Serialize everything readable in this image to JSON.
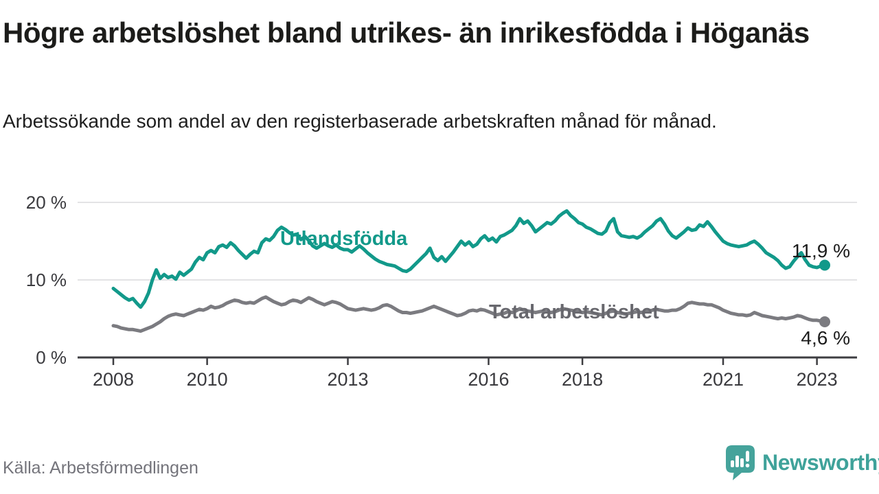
{
  "header": {
    "title": "Högre arbetslöshet bland utrikes- än inrikesfödda i Höganäs",
    "subtitle": "Arbetssökande som andel av den registerbaserade arbetskraften månad för månad."
  },
  "chart_data": {
    "type": "line",
    "title": "Högre arbetslöshet bland utrikes- än inrikesfödda i Höganäs",
    "xlabel": "",
    "ylabel": "Arbetssökande som andel av den registerbaserade arbetskraften, månadsvis",
    "x_start": "2008-01",
    "x_interval": "monthly",
    "x_end": "2023-03",
    "ylim": [
      0,
      21.5
    ],
    "grid": "horizontal",
    "legend_position": "inline-labels",
    "y_ticks": [
      {
        "value": 0,
        "label": "0 %"
      },
      {
        "value": 10,
        "label": "10 %"
      },
      {
        "value": 20,
        "label": "20 %"
      }
    ],
    "x_ticks": [
      {
        "label": "2008",
        "month": 0
      },
      {
        "label": "2010",
        "month": 24
      },
      {
        "label": "2013",
        "month": 60
      },
      {
        "label": "2016",
        "month": 96
      },
      {
        "label": "2018",
        "month": 120
      },
      {
        "label": "2021",
        "month": 156
      },
      {
        "label": "2023",
        "month": 180
      }
    ],
    "series": [
      {
        "name": "Utlandsfödda",
        "color": "#12998a",
        "end_label": "11,9 %",
        "end_value": 11.9,
        "values": [
          8.9,
          8.5,
          8.1,
          7.7,
          7.4,
          7.6,
          7.0,
          6.5,
          7.2,
          8.3,
          10.0,
          11.3,
          10.2,
          10.7,
          10.3,
          10.5,
          10.1,
          11.0,
          10.6,
          11.0,
          11.4,
          12.3,
          12.9,
          12.6,
          13.5,
          13.8,
          13.5,
          14.3,
          14.5,
          14.2,
          14.8,
          14.4,
          13.8,
          13.3,
          12.8,
          13.3,
          13.7,
          13.5,
          14.8,
          15.3,
          15.1,
          15.6,
          16.4,
          16.8,
          16.5,
          16.1,
          15.8,
          15.9,
          15.2,
          15.6,
          15.1,
          14.4,
          14.1,
          14.4,
          14.7,
          14.4,
          14.2,
          14.5,
          14.1,
          13.9,
          13.9,
          13.6,
          14.0,
          14.4,
          14.0,
          13.5,
          13.1,
          12.7,
          12.4,
          12.2,
          12.0,
          11.9,
          11.8,
          11.5,
          11.2,
          11.1,
          11.4,
          11.9,
          12.4,
          12.9,
          13.4,
          14.1,
          12.9,
          12.5,
          13.0,
          12.4,
          13.0,
          13.6,
          14.3,
          15.0,
          14.5,
          14.9,
          14.3,
          14.6,
          15.3,
          15.7,
          15.1,
          15.4,
          14.9,
          15.6,
          15.8,
          16.1,
          16.4,
          17.0,
          17.9,
          17.3,
          17.6,
          17.0,
          16.2,
          16.6,
          17.0,
          17.4,
          17.2,
          17.6,
          18.2,
          18.6,
          18.9,
          18.3,
          17.9,
          17.4,
          17.2,
          16.8,
          16.6,
          16.3,
          16.0,
          15.9,
          16.3,
          17.4,
          17.9,
          16.2,
          15.7,
          15.6,
          15.5,
          15.6,
          15.4,
          15.7,
          16.2,
          16.6,
          17.0,
          17.6,
          17.9,
          17.2,
          16.3,
          15.7,
          15.4,
          15.8,
          16.2,
          16.7,
          16.4,
          16.5,
          17.1,
          16.9,
          17.5,
          16.9,
          16.2,
          15.6,
          15.0,
          14.7,
          14.5,
          14.4,
          14.3,
          14.4,
          14.5,
          14.8,
          15.0,
          14.6,
          14.1,
          13.5,
          13.2,
          12.9,
          12.5,
          11.9,
          11.5,
          11.7,
          12.4,
          13.0,
          13.5,
          12.6,
          11.9,
          11.7,
          11.6,
          11.8,
          11.9
        ]
      },
      {
        "name": "Total arbetslöshet",
        "color": "#7b7b80",
        "end_label": "4,6 %",
        "end_value": 4.6,
        "values": [
          4.1,
          4.0,
          3.8,
          3.7,
          3.6,
          3.6,
          3.5,
          3.4,
          3.6,
          3.8,
          4.0,
          4.3,
          4.6,
          5.0,
          5.3,
          5.5,
          5.6,
          5.5,
          5.4,
          5.6,
          5.8,
          6.0,
          6.2,
          6.1,
          6.3,
          6.6,
          6.4,
          6.5,
          6.7,
          7.0,
          7.2,
          7.4,
          7.3,
          7.1,
          7.0,
          7.1,
          7.0,
          7.3,
          7.6,
          7.8,
          7.5,
          7.2,
          7.0,
          6.8,
          6.9,
          7.2,
          7.4,
          7.3,
          7.1,
          7.4,
          7.7,
          7.5,
          7.2,
          7.0,
          6.8,
          7.0,
          7.2,
          7.1,
          6.9,
          6.6,
          6.3,
          6.2,
          6.1,
          6.2,
          6.3,
          6.2,
          6.1,
          6.2,
          6.4,
          6.7,
          6.8,
          6.6,
          6.3,
          6.0,
          5.8,
          5.8,
          5.7,
          5.8,
          5.9,
          6.0,
          6.2,
          6.4,
          6.6,
          6.4,
          6.2,
          6.0,
          5.8,
          5.6,
          5.4,
          5.5,
          5.7,
          6.0,
          6.1,
          6.0,
          6.2,
          6.1,
          5.9,
          5.7,
          5.5,
          5.6,
          5.7,
          5.9,
          5.8,
          6.0,
          6.3,
          6.1,
          6.0,
          5.9,
          5.8,
          5.9,
          6.0,
          5.9,
          5.8,
          5.9,
          6.1,
          6.3,
          6.2,
          6.1,
          6.0,
          5.9,
          5.8,
          5.9,
          5.8,
          5.7,
          5.6,
          5.5,
          5.7,
          5.9,
          6.0,
          5.8,
          5.7,
          5.6,
          5.7,
          5.8,
          5.9,
          5.8,
          5.9,
          6.0,
          6.1,
          6.2,
          6.1,
          6.0,
          6.0,
          6.1,
          6.1,
          6.3,
          6.6,
          7.0,
          7.1,
          7.0,
          6.9,
          6.9,
          6.8,
          6.8,
          6.6,
          6.4,
          6.1,
          5.9,
          5.7,
          5.6,
          5.5,
          5.5,
          5.4,
          5.5,
          5.8,
          5.6,
          5.4,
          5.3,
          5.2,
          5.1,
          5.0,
          5.1,
          5.0,
          5.1,
          5.2,
          5.4,
          5.3,
          5.1,
          4.9,
          4.8,
          4.8,
          4.7,
          4.6
        ]
      }
    ]
  },
  "footer": {
    "source": "Källa: Arbetsförmedlingen",
    "brand": "Newsworthy"
  }
}
